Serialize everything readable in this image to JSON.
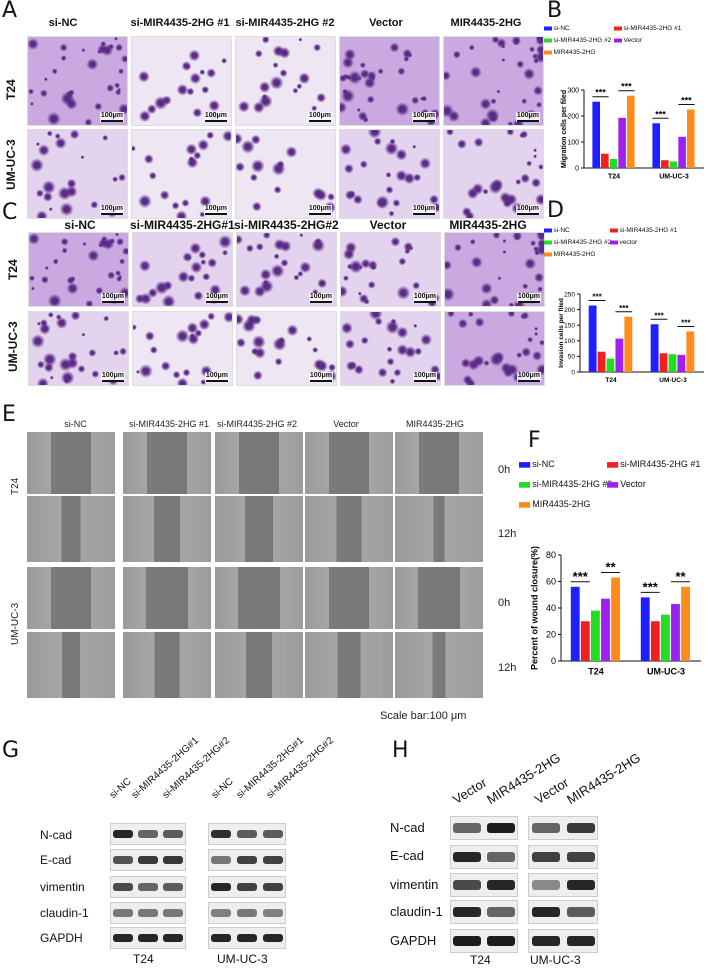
{
  "panels": {
    "A": "A",
    "B": "B",
    "C": "C",
    "D": "D",
    "E": "E",
    "F": "F",
    "G": "G",
    "H": "H"
  },
  "panelA": {
    "columns": [
      "si-NC",
      "si-MIR4435-2HG #1",
      "si-MIR4435-2HG #2",
      "Vector",
      "MIR4435-2HG"
    ],
    "rows": [
      "T24",
      "UM-UC-3"
    ],
    "scalebar": "100μm"
  },
  "panelC": {
    "columns": [
      "si-NC",
      "si-MIR4435-2HG#1",
      "si-MIR4435-2HG#2",
      "Vector",
      "MIR4435-2HG"
    ],
    "rows": [
      "T24",
      "UM-UC-3"
    ],
    "scalebar": "100μm"
  },
  "panelE": {
    "columns": [
      "si-NC",
      "si-MIR4435-2HG #1",
      "si-MIR4435-2HG #2",
      "Vector",
      "MIR4435-2HG"
    ],
    "rows": [
      "T24",
      "UM-UC-3"
    ],
    "times": [
      "0h",
      "12h",
      "0h",
      "12h"
    ],
    "scalebar_text": "Scale bar:100 μm"
  },
  "colors": {
    "si_nc": "#1f1fff",
    "si_1": "#ee2020",
    "si_2": "#22dd22",
    "vector": "#a020f0",
    "mir": "#ff8c1a",
    "stain_dark": "#5b2a86",
    "stain_light": "#efe6f4",
    "wound_bg": "#8a8a8a"
  },
  "chart_data": [
    {
      "id": "B",
      "type": "bar",
      "categories": [
        "T24",
        "UM-UC-3"
      ],
      "series": [
        {
          "name": "si-NC",
          "values": [
            255,
            172
          ]
        },
        {
          "name": "si-MIR4435-2HG #1",
          "values": [
            55,
            30
          ]
        },
        {
          "name": "si-MIR4435-2HG #2",
          "values": [
            35,
            25
          ]
        },
        {
          "name": "Vector",
          "values": [
            193,
            120
          ]
        },
        {
          "name": "MIR4435-2HG",
          "values": [
            278,
            225
          ]
        }
      ],
      "ylabel": "Migration cells per filed",
      "ylim": [
        0,
        300
      ],
      "yticks": [
        0,
        100,
        200,
        300
      ],
      "significance": [
        "***",
        "***",
        "***",
        "***"
      ]
    },
    {
      "id": "D",
      "type": "bar",
      "categories": [
        "T24",
        "UM-UC-3"
      ],
      "series": [
        {
          "name": "si-NC",
          "values": [
            213,
            153
          ]
        },
        {
          "name": "si-MIR4435-2HG #1",
          "values": [
            65,
            60
          ]
        },
        {
          "name": "si-MIR4435-2HG #2",
          "values": [
            43,
            57
          ]
        },
        {
          "name": "vector",
          "values": [
            107,
            55
          ]
        },
        {
          "name": "MIR4435-2HG",
          "values": [
            177,
            130
          ]
        }
      ],
      "ylabel": "Invasion cells per filed",
      "ylim": [
        0,
        250
      ],
      "yticks": [
        0,
        50,
        100,
        150,
        200,
        250
      ],
      "significance": [
        "***",
        "***",
        "***",
        "***"
      ]
    },
    {
      "id": "F",
      "type": "bar",
      "categories": [
        "T24",
        "UM-UC-3"
      ],
      "series": [
        {
          "name": "si-NC",
          "values": [
            56,
            48
          ]
        },
        {
          "name": "si-MIR4435-2HG #1",
          "values": [
            30,
            30
          ]
        },
        {
          "name": "si-MIR4435-2HG #2",
          "values": [
            38,
            35
          ]
        },
        {
          "name": "Vector",
          "values": [
            47,
            43
          ]
        },
        {
          "name": "MIR4435-2HG",
          "values": [
            63,
            56
          ]
        }
      ],
      "ylabel": "Percent of wound closure(%)",
      "ylim": [
        0,
        80
      ],
      "yticks": [
        0,
        20,
        40,
        60,
        80
      ],
      "significance": [
        "***",
        "**",
        "***",
        "**"
      ]
    }
  ],
  "panelG": {
    "lanes_left": [
      "si-NC",
      "si-MIR4435-2HG#1",
      "si-MIR4435-2HG#2"
    ],
    "lanes_right": [
      "si-NC",
      "si-MIR4435-2HG#1",
      "si-MIR4435-2HG#2"
    ],
    "proteins": [
      "N-cad",
      "E-cad",
      "vimentin",
      "claudin-1",
      "GAPDH"
    ],
    "cells": [
      "T24",
      "UM-UC-3"
    ]
  },
  "panelH": {
    "lanes_left": [
      "Vector",
      "MIR4435-2HG"
    ],
    "lanes_right": [
      "Vector",
      "MIR4435-2HG"
    ],
    "proteins": [
      "N-cad",
      "E-cad",
      "vimentin",
      "claudin-1",
      "GAPDH"
    ],
    "cells": [
      "T24",
      "UM-UC-3"
    ]
  }
}
